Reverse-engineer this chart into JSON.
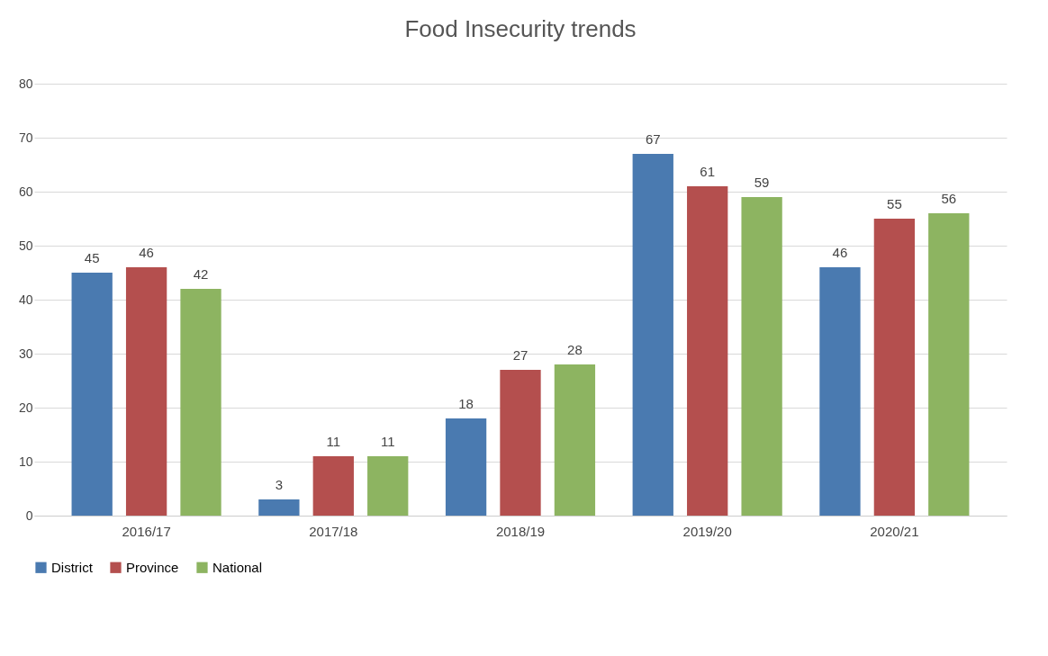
{
  "chart_data": {
    "type": "bar",
    "title": "Food Insecurity trends",
    "categories": [
      "2016/17",
      "2017/18",
      "2018/19",
      "2019/20",
      "2020/21"
    ],
    "series": [
      {
        "name": "District",
        "color": "#4a7ab0",
        "values": [
          45,
          3,
          18,
          67,
          46
        ]
      },
      {
        "name": "Province",
        "color": "#b44f4e",
        "values": [
          46,
          11,
          27,
          61,
          55
        ]
      },
      {
        "name": "National",
        "color": "#8db461",
        "values": [
          42,
          11,
          28,
          59,
          56
        ]
      }
    ],
    "ylim": [
      0,
      80
    ],
    "yticks": [
      0,
      10,
      20,
      30,
      40,
      50,
      60,
      70,
      80
    ],
    "grid": "y",
    "legend": "bottom",
    "data_labels": true
  }
}
